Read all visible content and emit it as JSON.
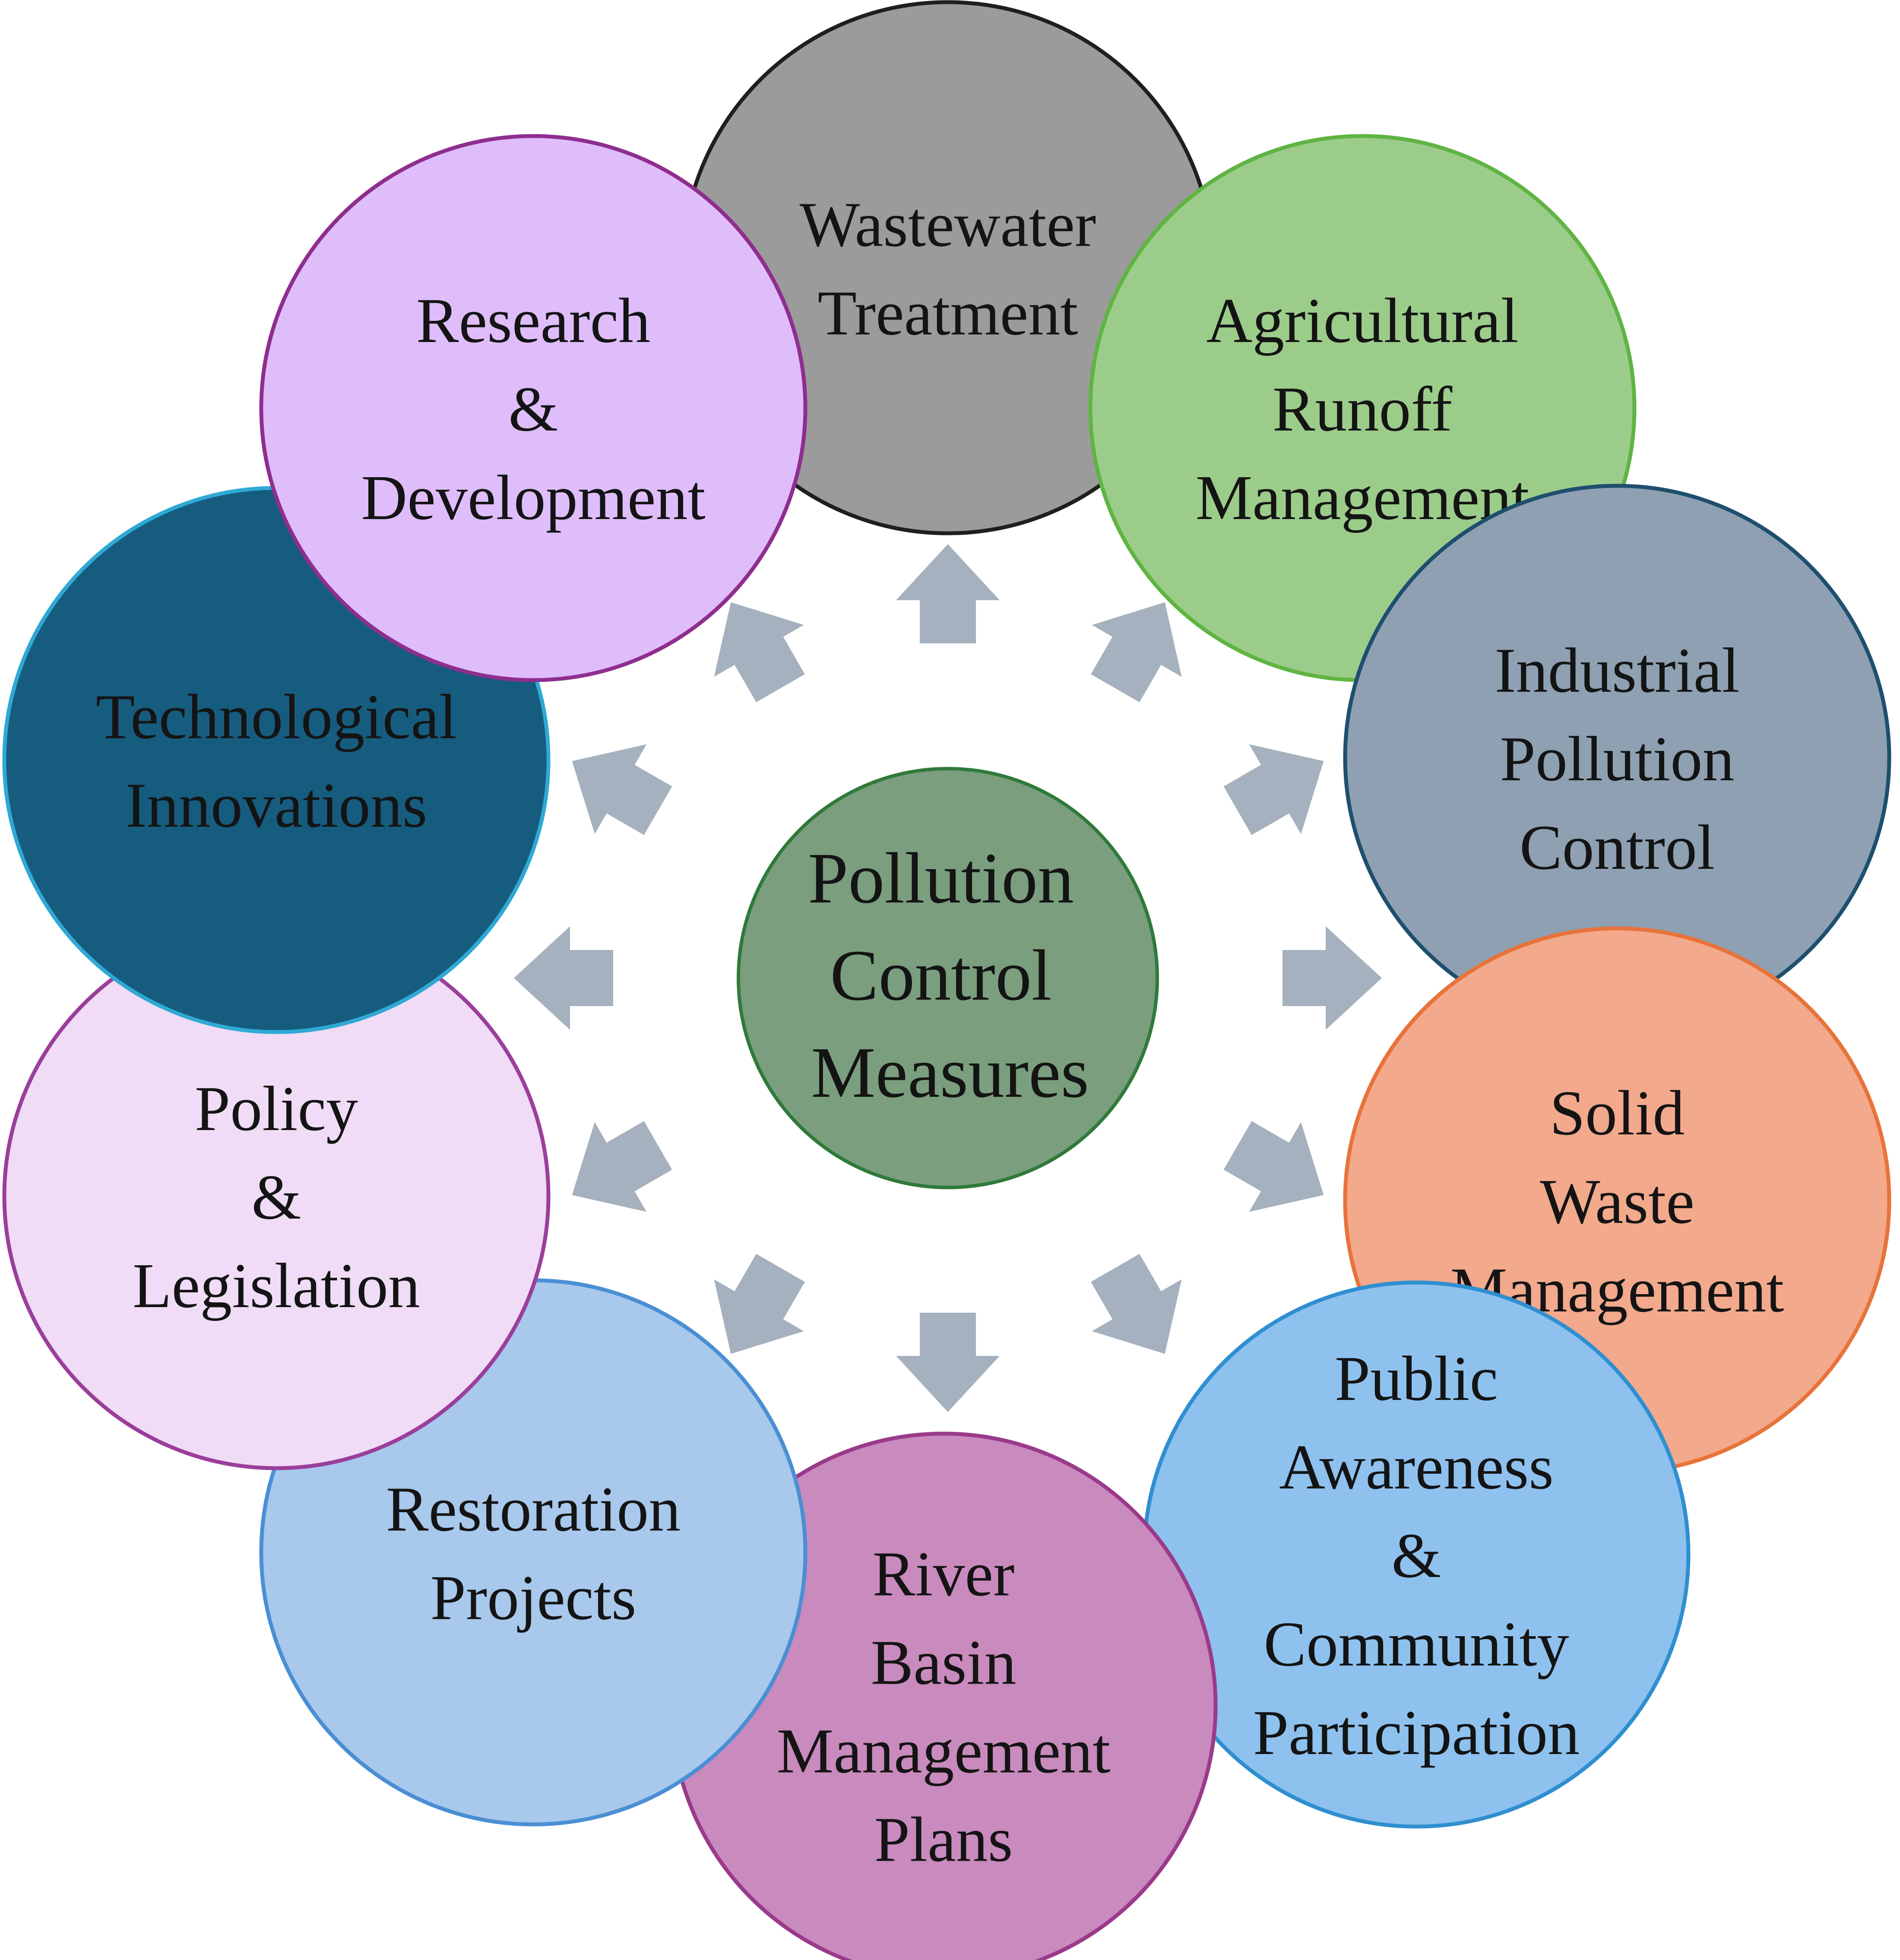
{
  "diagram": {
    "center": {
      "lines": [
        "Pollution",
        "Control",
        "Measures"
      ],
      "fill": "#7a9e7e",
      "stroke": "#2f7a3a"
    },
    "arrow_color": "#a5b1be",
    "nodes": [
      {
        "id": "wastewater-treatment",
        "lines": [
          "Wastewater",
          "Treatment"
        ],
        "fill": "#9b9b9b",
        "stroke": "#1f1f1f"
      },
      {
        "id": "agricultural-runoff-management",
        "lines": [
          "Agricultural",
          "Runoff",
          "Management"
        ],
        "fill": "#9ccc8a",
        "stroke": "#5fb443"
      },
      {
        "id": "industrial-pollution-control",
        "lines": [
          "Industrial",
          "Pollution",
          "Control"
        ],
        "fill": "#8ea0b2",
        "stroke": "#1e4f6e"
      },
      {
        "id": "solid-waste-management",
        "lines": [
          "Solid",
          "Waste",
          "Management"
        ],
        "fill": "#f2a98c",
        "stroke": "#e8733a"
      },
      {
        "id": "public-awareness-community-participation",
        "lines": [
          "Public",
          "Awareness",
          "&",
          "Community",
          "Participation"
        ],
        "fill": "#8ec1ee",
        "stroke": "#2f8fd0"
      },
      {
        "id": "river-basin-management-plans",
        "lines": [
          "River",
          "Basin",
          "Management",
          "Plans"
        ],
        "fill": "#c98abd",
        "stroke": "#9a3a8a"
      },
      {
        "id": "restoration-projects",
        "lines": [
          "Restoration",
          "Projects"
        ],
        "fill": "#a8c8ec",
        "stroke": "#4a8fd4"
      },
      {
        "id": "policy-legislation",
        "lines": [
          "Policy",
          "&",
          "Legislation"
        ],
        "fill": "#f0dcf6",
        "stroke": "#9b3e9b"
      },
      {
        "id": "technological-innovations",
        "lines": [
          "Technological",
          "Innovations"
        ],
        "fill": "#165c7e",
        "stroke": "#2ea9d4"
      },
      {
        "id": "research-development",
        "lines": [
          "Research",
          "&",
          "Development"
        ],
        "fill": "#dfbdfb",
        "stroke": "#8e2e8e"
      }
    ]
  }
}
